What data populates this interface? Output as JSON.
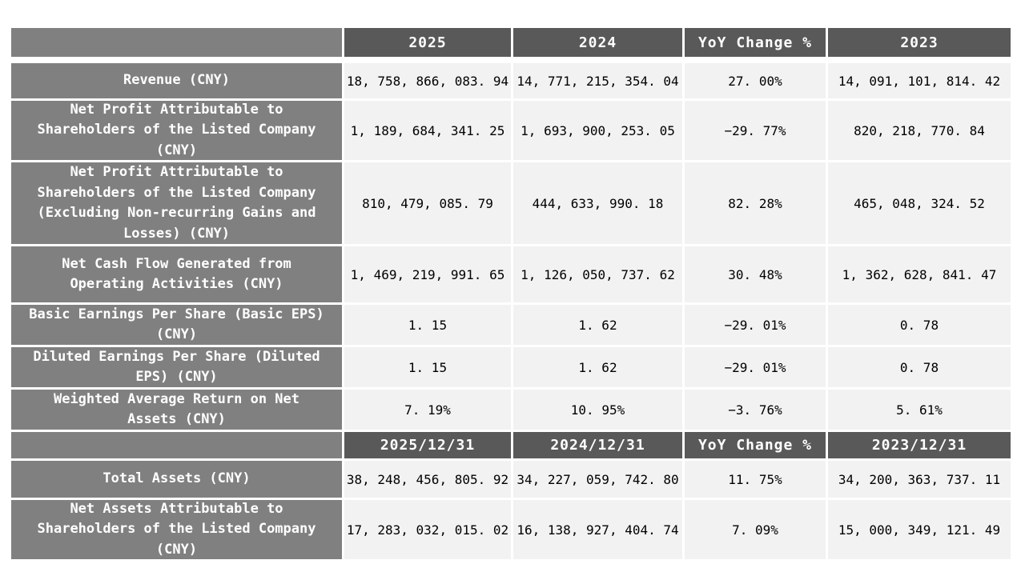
{
  "page": {
    "background": "#ffffff"
  },
  "colors": {
    "header_bg": "#595959",
    "header_text": "#ffffff",
    "label_bg": "#808080",
    "label_text": "#ffffff",
    "cell_bg": "#f2f2f2",
    "cell_text": "#000000",
    "separator": "#ffffff"
  },
  "table": {
    "sections": [
      {
        "header": {
          "corner": "",
          "columns": [
            "2025",
            "2024",
            "YoY Change %",
            "2023"
          ]
        },
        "rows": [
          {
            "label": "Revenue (CNY)",
            "values": [
              "18, 758, 866, 083. 94",
              "14, 771, 215, 354. 04",
              "27. 00%",
              "14, 091, 101, 814. 42"
            ]
          },
          {
            "label": "Net Profit Attributable to\nShareholders of the Listed Company\n(CNY)",
            "values": [
              "1, 189, 684, 341. 25",
              "1, 693, 900, 253. 05",
              "−29. 77%",
              "820, 218, 770. 84"
            ]
          },
          {
            "label": "Net Profit Attributable to\nShareholders of the Listed Company\n(Excluding Non-recurring Gains and\nLosses) (CNY)",
            "values": [
              "810, 479, 085. 79",
              "444, 633, 990. 18",
              "82. 28%",
              "465, 048, 324. 52"
            ]
          },
          {
            "label": "Net Cash Flow Generated from\nOperating Activities (CNY)",
            "values": [
              "1, 469, 219, 991. 65",
              "1, 126, 050, 737. 62",
              "30. 48%",
              "1, 362, 628, 841. 47"
            ]
          },
          {
            "label": "Basic Earnings Per Share (Basic EPS)\n(CNY)",
            "values": [
              "1. 15",
              "1. 62",
              "−29. 01%",
              "0. 78"
            ]
          },
          {
            "label": "Diluted Earnings Per Share (Diluted\nEPS) (CNY)",
            "values": [
              "1. 15",
              "1. 62",
              "−29. 01%",
              "0. 78"
            ]
          },
          {
            "label": "Weighted Average Return on Net\nAssets (CNY)",
            "values": [
              "7. 19%",
              "10. 95%",
              "−3. 76%",
              "5. 61%"
            ]
          }
        ]
      },
      {
        "header": {
          "corner": "",
          "columns": [
            "2025/12/31",
            "2024/12/31",
            "YoY Change %",
            "2023/12/31"
          ]
        },
        "rows": [
          {
            "label": "Total Assets (CNY)",
            "values": [
              "38, 248, 456, 805. 92",
              "34, 227, 059, 742. 80",
              "11. 75%",
              "34, 200, 363, 737. 11"
            ]
          },
          {
            "label": "Net Assets Attributable to\nShareholders of the Listed Company\n(CNY)",
            "values": [
              "17, 283, 032, 015. 02",
              "16, 138, 927, 404. 74",
              "7. 09%",
              "15, 000, 349, 121. 49"
            ]
          }
        ]
      }
    ]
  }
}
